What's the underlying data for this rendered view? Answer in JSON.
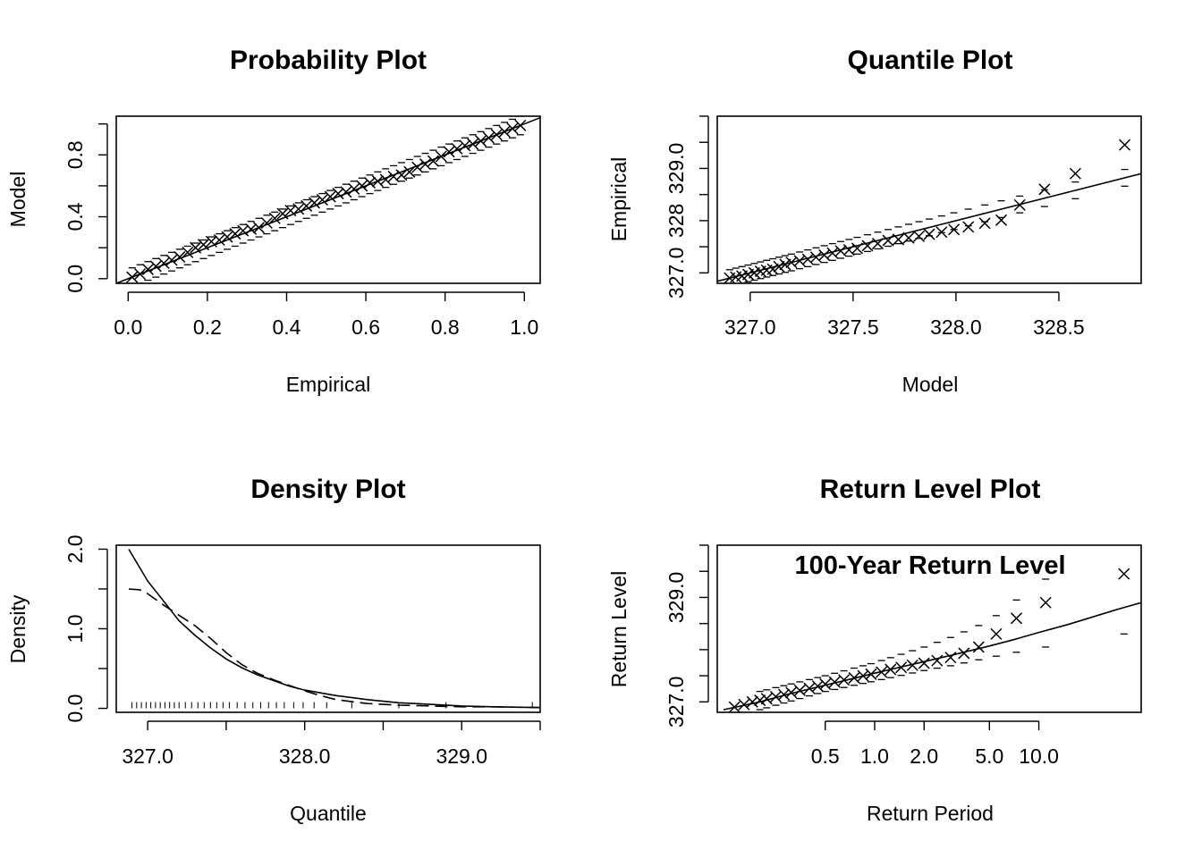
{
  "colors": {
    "annotation": "#ff0000",
    "ink": "#000000"
  },
  "chart_data": [
    {
      "type": "scatter",
      "title": "Probability Plot",
      "xlabel": "Empirical",
      "ylabel": "Model",
      "xlim": [
        -0.03,
        1.04
      ],
      "ylim": [
        -0.03,
        1.05
      ],
      "x_ticks": [
        0.0,
        0.2,
        0.4,
        0.6,
        0.8,
        1.0
      ],
      "x_tick_labels": [
        "0.0",
        "0.2",
        "0.4",
        "0.6",
        "0.8",
        "1.0"
      ],
      "y_ticks": [
        0.0,
        0.2,
        0.4,
        0.6,
        0.8,
        1.0
      ],
      "y_tick_labels": [
        "0.0",
        "",
        "0.4",
        "",
        "0.8",
        ""
      ],
      "reference_line": {
        "x": [
          -0.03,
          1.04
        ],
        "y": [
          -0.03,
          1.04
        ]
      },
      "points": {
        "x": [
          0.01,
          0.03,
          0.05,
          0.07,
          0.09,
          0.11,
          0.13,
          0.15,
          0.17,
          0.19,
          0.21,
          0.23,
          0.25,
          0.27,
          0.29,
          0.31,
          0.33,
          0.35,
          0.37,
          0.39,
          0.41,
          0.43,
          0.45,
          0.47,
          0.49,
          0.51,
          0.53,
          0.55,
          0.57,
          0.59,
          0.61,
          0.63,
          0.65,
          0.67,
          0.69,
          0.71,
          0.73,
          0.75,
          0.77,
          0.79,
          0.81,
          0.83,
          0.85,
          0.87,
          0.89,
          0.91,
          0.93,
          0.95,
          0.97,
          0.99
        ],
        "y": [
          0.01,
          0.03,
          0.06,
          0.08,
          0.1,
          0.12,
          0.14,
          0.17,
          0.2,
          0.22,
          0.24,
          0.25,
          0.27,
          0.29,
          0.31,
          0.32,
          0.33,
          0.36,
          0.39,
          0.42,
          0.44,
          0.45,
          0.47,
          0.49,
          0.51,
          0.53,
          0.55,
          0.56,
          0.58,
          0.6,
          0.62,
          0.63,
          0.64,
          0.66,
          0.67,
          0.69,
          0.72,
          0.74,
          0.76,
          0.79,
          0.82,
          0.84,
          0.86,
          0.87,
          0.89,
          0.91,
          0.93,
          0.95,
          0.97,
          0.99
        ]
      },
      "ci_halfwidth": 0.06
    },
    {
      "type": "scatter",
      "title": "Quantile Plot",
      "xlabel": "Model",
      "ylabel": "Empirical",
      "xlim": [
        326.84,
        328.9
      ],
      "ylim": [
        326.8,
        330.0
      ],
      "x_ticks": [
        327.0,
        327.5,
        328.0,
        328.5
      ],
      "x_tick_labels": [
        "327.0",
        "327.5",
        "328.0",
        "328.5"
      ],
      "y_ticks": [
        327.0,
        327.5,
        328.0,
        328.5,
        329.0,
        329.5,
        330.0
      ],
      "y_tick_labels": [
        "327.0",
        "",
        "328",
        "",
        "329.0",
        "",
        ""
      ],
      "reference_line": {
        "x": [
          326.84,
          328.9
        ],
        "y": [
          326.84,
          328.9
        ]
      },
      "points": {
        "x": [
          326.9,
          326.93,
          326.96,
          326.99,
          327.02,
          327.05,
          327.08,
          327.11,
          327.14,
          327.17,
          327.2,
          327.24,
          327.28,
          327.32,
          327.36,
          327.4,
          327.44,
          327.48,
          327.52,
          327.57,
          327.62,
          327.67,
          327.72,
          327.77,
          327.82,
          327.87,
          327.93,
          327.99,
          328.06,
          328.14,
          328.22,
          328.31,
          328.43,
          328.58,
          328.82
        ],
        "y": [
          326.9,
          326.92,
          326.94,
          326.97,
          327.0,
          327.03,
          327.05,
          327.07,
          327.12,
          327.16,
          327.2,
          327.23,
          327.26,
          327.3,
          327.34,
          327.38,
          327.42,
          327.44,
          327.47,
          327.52,
          327.56,
          327.62,
          327.64,
          327.67,
          327.7,
          327.74,
          327.78,
          327.83,
          327.88,
          327.95,
          328.01,
          328.3,
          328.6,
          328.9,
          329.45
        ]
      },
      "ci_halfwidth": 0.16
    },
    {
      "type": "line",
      "title": "Density Plot",
      "xlabel": "Quantile",
      "ylabel": "Density",
      "xlim": [
        326.8,
        329.5
      ],
      "ylim": [
        -0.05,
        2.05
      ],
      "x_ticks": [
        327.0,
        327.5,
        328.0,
        328.5,
        329.0,
        329.5
      ],
      "x_tick_labels": [
        "327.0",
        "",
        "328.0",
        "",
        "329.0",
        ""
      ],
      "y_ticks": [
        0.0,
        0.5,
        1.0,
        1.5,
        2.0
      ],
      "y_tick_labels": [
        "0.0",
        "",
        "1.0",
        "",
        "2.0"
      ],
      "series": [
        {
          "style": "solid",
          "x": [
            326.88,
            327.0,
            327.1,
            327.2,
            327.3,
            327.4,
            327.5,
            327.6,
            327.7,
            327.8,
            327.9,
            328.0,
            328.2,
            328.4,
            328.6,
            328.8,
            329.0,
            329.2,
            329.5
          ],
          "y": [
            2.0,
            1.6,
            1.35,
            1.1,
            0.92,
            0.76,
            0.62,
            0.51,
            0.42,
            0.35,
            0.28,
            0.23,
            0.16,
            0.11,
            0.07,
            0.05,
            0.03,
            0.02,
            0.01
          ]
        },
        {
          "style": "dashed",
          "x": [
            326.88,
            326.95,
            327.0,
            327.1,
            327.2,
            327.3,
            327.4,
            327.5,
            327.6,
            327.7,
            327.8,
            327.9,
            328.0,
            328.1,
            328.2,
            328.4,
            328.6,
            328.8,
            329.0,
            329.2,
            329.5
          ],
          "y": [
            1.5,
            1.49,
            1.44,
            1.3,
            1.17,
            1.04,
            0.88,
            0.7,
            0.55,
            0.44,
            0.36,
            0.29,
            0.22,
            0.16,
            0.11,
            0.06,
            0.04,
            0.03,
            0.02,
            0.02,
            0.01
          ]
        }
      ],
      "rug": [
        326.9,
        326.93,
        326.96,
        326.99,
        327.02,
        327.05,
        327.08,
        327.11,
        327.14,
        327.17,
        327.2,
        327.24,
        327.28,
        327.32,
        327.36,
        327.4,
        327.44,
        327.48,
        327.52,
        327.57,
        327.62,
        327.67,
        327.72,
        327.77,
        327.82,
        327.87,
        327.93,
        327.99,
        328.06,
        328.14,
        328.3,
        328.6,
        328.9,
        329.45
      ]
    },
    {
      "type": "scatter",
      "title": "Return Level Plot",
      "xlabel": "Return Period",
      "ylabel": "Return Level",
      "annotation": "100-Year Return Level",
      "x_scale": "log",
      "xlim": [
        0.11,
        42.0
      ],
      "ylim": [
        326.8,
        330.0
      ],
      "x_ticks": [
        0.5,
        1.0,
        2.0,
        5.0,
        10.0
      ],
      "x_tick_labels": [
        "0.5",
        "1.0",
        "2.0",
        "5.0",
        "10.0"
      ],
      "y_ticks": [
        327.0,
        327.5,
        328.0,
        328.5,
        329.0,
        329.5,
        330.0
      ],
      "y_tick_labels": [
        "327.0",
        "",
        "",
        "",
        "329.0",
        "",
        ""
      ],
      "fitted_line": {
        "x": [
          0.12,
          0.2,
          0.3,
          0.5,
          0.7,
          1.0,
          1.5,
          2.0,
          3.0,
          5.0,
          7.0,
          10.0,
          15.0,
          20.0,
          30.0,
          42.0
        ],
        "y": [
          326.85,
          327.0,
          327.15,
          327.32,
          327.43,
          327.55,
          327.68,
          327.77,
          327.9,
          328.07,
          328.19,
          328.33,
          328.48,
          328.6,
          328.77,
          328.9
        ]
      },
      "points": {
        "x": [
          0.14,
          0.16,
          0.18,
          0.2,
          0.22,
          0.25,
          0.28,
          0.31,
          0.35,
          0.4,
          0.45,
          0.5,
          0.57,
          0.65,
          0.75,
          0.85,
          0.95,
          1.1,
          1.25,
          1.45,
          1.7,
          2.0,
          2.4,
          2.9,
          3.5,
          4.3,
          5.5,
          7.3,
          11.0,
          33.0
        ],
        "y": [
          326.9,
          326.95,
          327.0,
          327.03,
          327.06,
          327.1,
          327.14,
          327.18,
          327.22,
          327.26,
          327.3,
          327.34,
          327.38,
          327.42,
          327.46,
          327.5,
          327.53,
          327.57,
          327.62,
          327.66,
          327.7,
          327.74,
          327.79,
          327.85,
          327.93,
          328.05,
          328.3,
          328.6,
          328.9,
          329.45
        ]
      },
      "ci_lower": {
        "x": [
          0.2,
          0.5,
          1.0,
          2.0,
          3.0,
          5.0,
          7.3,
          11.0,
          33.0
        ],
        "y": [
          326.85,
          327.2,
          327.4,
          327.6,
          327.7,
          327.85,
          327.95,
          328.05,
          328.3
        ]
      },
      "ci_upper": {
        "x": [
          0.2,
          0.5,
          1.0,
          2.0,
          3.0,
          5.0,
          7.3,
          11.0,
          33.0
        ],
        "y": [
          327.2,
          327.5,
          327.75,
          328.05,
          328.25,
          328.55,
          328.95,
          329.35,
          330.1
        ]
      }
    }
  ]
}
